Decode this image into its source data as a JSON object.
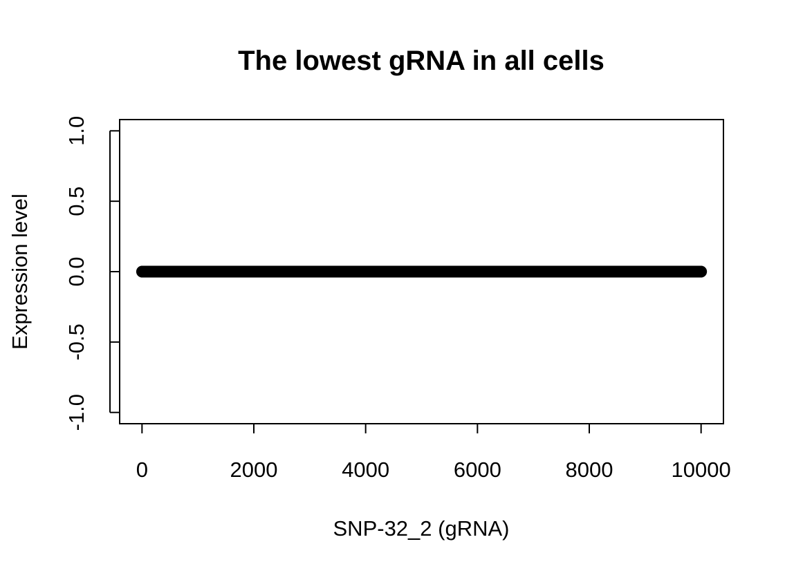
{
  "chart_data": {
    "type": "scatter",
    "title": "The lowest gRNA in all cells",
    "xlabel": "SNP-32_2 (gRNA)",
    "ylabel": "Expression level",
    "xlim": [
      -400,
      10400
    ],
    "ylim": [
      -1.08,
      1.08
    ],
    "x_ticks": [
      0,
      2000,
      4000,
      6000,
      8000,
      10000
    ],
    "x_tick_labels": [
      "0",
      "2000",
      "4000",
      "6000",
      "8000",
      "10000"
    ],
    "y_ticks": [
      -1.0,
      -0.5,
      0.0,
      0.5,
      1.0
    ],
    "y_tick_labels": [
      "-1.0",
      "-0.5",
      "0.0",
      "0.5",
      "1.0"
    ],
    "series": [
      {
        "point_count": 10000,
        "x_start": 1,
        "x_end": 10000,
        "x_step": 1,
        "y_constant": 0,
        "color": "#000000",
        "marker": "filled-circle"
      }
    ],
    "grid": false,
    "legend": "none"
  }
}
